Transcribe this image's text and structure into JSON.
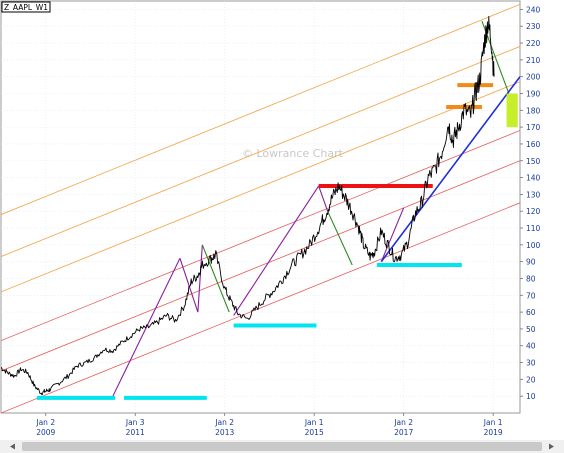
{
  "window": {
    "symbol_tag": "Z_AAPL_W1",
    "watermark": "© Lowrance Chart"
  },
  "colors": {
    "price": "#000000",
    "channel_orange": "#f4a040",
    "channel_red": "#e85a5a",
    "purple": "#8a1f9e",
    "green": "#2f8a1f",
    "blue": "#1f2fd9",
    "cyan": "#00e5ee",
    "red_level": "#ee1111",
    "orange_level": "#f08a18",
    "target_zone": "#c6ee2a",
    "axis_text": "#1a3a9a",
    "grid": "#dde6f5"
  },
  "chart_data": {
    "type": "line",
    "title": "",
    "xlabel": "",
    "ylabel": "",
    "ylim": [
      0,
      245
    ],
    "xlim": [
      2008.0,
      2019.6
    ],
    "y_ticks": [
      10,
      20,
      30,
      40,
      50,
      60,
      70,
      80,
      90,
      100,
      110,
      120,
      130,
      140,
      150,
      160,
      170,
      180,
      190,
      200,
      210,
      220,
      230,
      240
    ],
    "x_ticks": [
      {
        "x": 2009.0,
        "line1": "Jan 2",
        "line2": "2009"
      },
      {
        "x": 2011.0,
        "line1": "Jan 3",
        "line2": "2011"
      },
      {
        "x": 2013.0,
        "line1": "Jan 2",
        "line2": "2013"
      },
      {
        "x": 2015.0,
        "line1": "Jan 1",
        "line2": "2015"
      },
      {
        "x": 2017.0,
        "line1": "Jan 2",
        "line2": "2017"
      },
      {
        "x": 2019.0,
        "line1": "Jan 1",
        "line2": "2019"
      }
    ],
    "grid": true,
    "price_series": {
      "x": [
        2008.0,
        2008.15,
        2008.3,
        2008.45,
        2008.6,
        2008.75,
        2008.9,
        2009.0,
        2009.1,
        2009.3,
        2009.5,
        2009.7,
        2009.9,
        2010.1,
        2010.3,
        2010.5,
        2010.7,
        2010.9,
        2011.1,
        2011.3,
        2011.5,
        2011.7,
        2011.9,
        2012.1,
        2012.25,
        2012.4,
        2012.5,
        2012.7,
        2012.8,
        2013.0,
        2013.15,
        2013.3,
        2013.5,
        2013.7,
        2013.9,
        2014.1,
        2014.3,
        2014.5,
        2014.7,
        2014.9,
        2015.1,
        2015.25,
        2015.4,
        2015.55,
        2015.7,
        2015.85,
        2016.0,
        2016.1,
        2016.25,
        2016.35,
        2016.5,
        2016.65,
        2016.8,
        2016.95,
        2017.1,
        2017.25,
        2017.4,
        2017.55,
        2017.7,
        2017.85,
        2018.0,
        2018.1,
        2018.2,
        2018.35,
        2018.5,
        2018.6,
        2018.7,
        2018.8,
        2018.88,
        2018.95,
        2019.02
      ],
      "y": [
        27,
        24,
        22,
        26,
        24,
        16,
        12,
        13,
        14,
        18,
        22,
        28,
        30,
        33,
        38,
        37,
        42,
        46,
        50,
        51,
        54,
        58,
        55,
        64,
        78,
        82,
        88,
        92,
        94,
        74,
        66,
        59,
        56,
        62,
        68,
        73,
        80,
        88,
        94,
        100,
        110,
        118,
        128,
        135,
        128,
        120,
        110,
        100,
        93,
        96,
        108,
        100,
        92,
        94,
        102,
        118,
        125,
        140,
        145,
        155,
        172,
        162,
        168,
        180,
        177,
        190,
        198,
        220,
        232,
        224,
        200
      ]
    },
    "channels": {
      "orange": [
        [
          2008.0,
          118,
          2019.6,
          243
        ],
        [
          2008.0,
          93,
          2019.6,
          218
        ],
        [
          2008.0,
          72,
          2019.6,
          197
        ]
      ],
      "red": [
        [
          2008.0,
          43,
          2019.6,
          168
        ],
        [
          2008.0,
          25,
          2019.6,
          150
        ],
        [
          2008.0,
          0,
          2019.6,
          125
        ]
      ]
    },
    "segments": {
      "purple": [
        [
          2010.5,
          10,
          2012.0,
          92
        ],
        [
          2012.0,
          92,
          2012.4,
          60
        ],
        [
          2012.4,
          60,
          2012.5,
          100
        ],
        [
          2013.2,
          58,
          2015.1,
          135
        ],
        [
          2015.1,
          135,
          2015.3,
          120
        ],
        [
          2016.5,
          90,
          2017.0,
          122
        ]
      ],
      "green": [
        [
          2012.5,
          100,
          2013.1,
          60
        ],
        [
          2015.3,
          120,
          2015.85,
          88
        ],
        [
          2018.75,
          233,
          2019.35,
          190
        ]
      ],
      "blue": [
        [
          2016.5,
          90,
          2019.6,
          200
        ]
      ]
    },
    "levels": {
      "cyan": [
        [
          2008.8,
          2010.55,
          9
        ],
        [
          2010.75,
          2012.6,
          9
        ],
        [
          2013.2,
          2015.05,
          52
        ],
        [
          2016.4,
          2018.3,
          88
        ]
      ],
      "red": [
        [
          2015.1,
          2017.65,
          135
        ]
      ],
      "orange": [
        [
          2017.95,
          2018.75,
          182
        ],
        [
          2018.2,
          2019.0,
          195
        ]
      ]
    },
    "target_zone": {
      "x": [
        2019.3,
        2019.55
      ],
      "y": [
        170,
        190
      ]
    }
  }
}
